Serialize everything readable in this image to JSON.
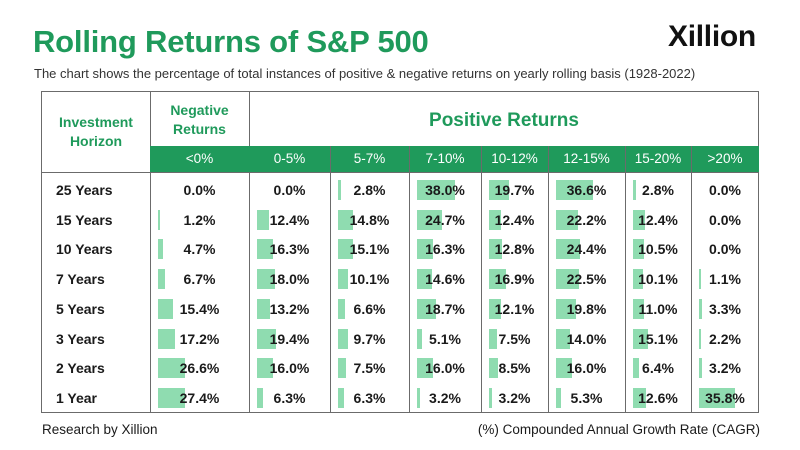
{
  "header": {
    "title": "Rolling Returns of S&P 500",
    "logo": "Xillion",
    "subtitle": "The chart shows the percentage of total instances of positive & negative returns on yearly rolling basis (1928-2022)"
  },
  "footer": {
    "left": "Research by Xillion",
    "right": "(%) Compounded Annual Growth Rate (CAGR)"
  },
  "colors": {
    "accent": "#1f9a5b",
    "bar": "#8fdcb0"
  },
  "chart_data": {
    "type": "table",
    "row_header": "Investment Horizon",
    "group_headers": {
      "negative": "Negative Returns",
      "positive": "Positive Returns"
    },
    "columns": [
      "<0%",
      "0-5%",
      "5-7%",
      "7-10%",
      "10-12%",
      "12-15%",
      "15-20%",
      ">20%"
    ],
    "rows": [
      "25 Years",
      "15 Years",
      "10 Years",
      "7 Years",
      "5 Years",
      "3 Years",
      "2 Years",
      "1 Year"
    ],
    "values": [
      [
        0.0,
        0.0,
        2.8,
        38.0,
        19.7,
        36.6,
        2.8,
        0.0
      ],
      [
        1.2,
        12.4,
        14.8,
        24.7,
        12.4,
        22.2,
        12.4,
        0.0
      ],
      [
        4.7,
        16.3,
        15.1,
        16.3,
        12.8,
        24.4,
        10.5,
        0.0
      ],
      [
        6.7,
        18.0,
        10.1,
        14.6,
        16.9,
        22.5,
        10.1,
        1.1
      ],
      [
        15.4,
        13.2,
        6.6,
        18.7,
        12.1,
        19.8,
        11.0,
        3.3
      ],
      [
        17.2,
        19.4,
        9.7,
        5.1,
        7.5,
        14.0,
        15.1,
        2.2
      ],
      [
        26.6,
        16.0,
        7.5,
        16.0,
        8.5,
        16.0,
        6.4,
        3.2
      ],
      [
        27.4,
        6.3,
        6.3,
        3.2,
        3.2,
        5.3,
        12.6,
        35.8
      ]
    ],
    "value_labels": [
      [
        "0.0%",
        "0.0%",
        "2.8%",
        "38.0%",
        "19.7%",
        "36.6%",
        "2.8%",
        "0.0%"
      ],
      [
        "1.2%",
        "12.4%",
        "14.8%",
        "24.7%",
        "12.4%",
        "22.2%",
        "12.4%",
        "0.0%"
      ],
      [
        "4.7%",
        "16.3%",
        "15.1%",
        "16.3%",
        "12.8%",
        "24.4%",
        "10.5%",
        "0.0%"
      ],
      [
        "6.7%",
        "18.0%",
        "10.1%",
        "14.6%",
        "16.9%",
        "22.5%",
        "10.1%",
        "1.1%"
      ],
      [
        "15.4%",
        "13.2%",
        "6.6%",
        "18.7%",
        "12.1%",
        "19.8%",
        "11.0%",
        "3.3%"
      ],
      [
        "17.2%",
        "19.4%",
        "9.7%",
        "5.1%",
        "7.5%",
        "14.0%",
        "15.1%",
        "2.2%"
      ],
      [
        "26.6%",
        "16.0%",
        "7.5%",
        "16.0%",
        "8.5%",
        "16.0%",
        "6.4%",
        "3.2%"
      ],
      [
        "27.4%",
        "6.3%",
        "6.3%",
        "3.2%",
        "3.2%",
        "5.3%",
        "12.6%",
        "35.8%"
      ]
    ]
  }
}
